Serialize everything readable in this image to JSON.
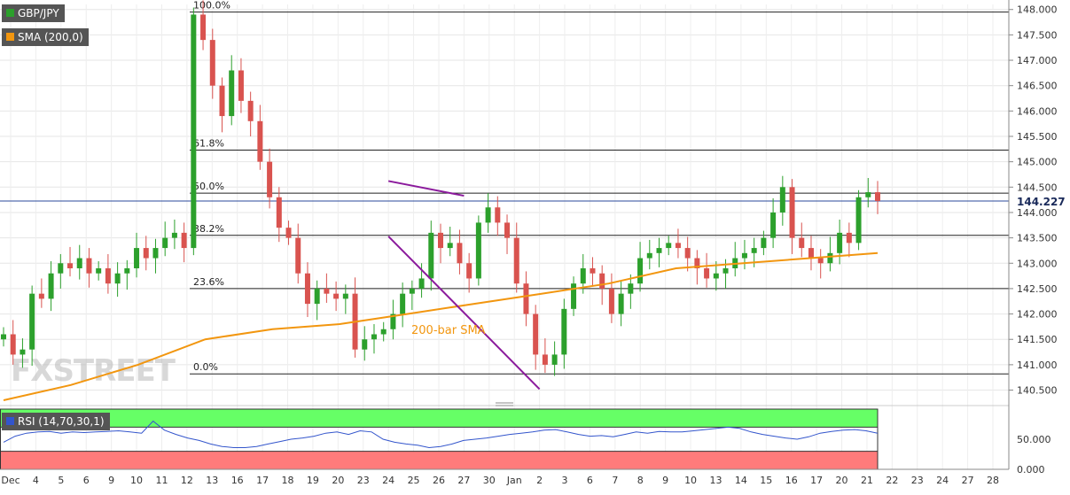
{
  "legend": {
    "symbol": "GBP/JPY",
    "sma": "SMA (200,0)",
    "rsi": "RSI (14,70,30,1)"
  },
  "annotations": {
    "sma_label": "200-bar SMA",
    "price_tag": "144.227"
  },
  "colors": {
    "up": "#2ca02c",
    "down": "#d9534f",
    "sma": "#f2960f",
    "trend": "#8b1a9c",
    "rsi_line": "#3355cc",
    "rsi_overbought": "#66ff66",
    "rsi_oversold": "#ff7b7b",
    "legend_bg": "#555555"
  },
  "watermark": "FXSTREET",
  "chart_data": {
    "type": "candlestick",
    "ylim": [
      140.3,
      148.1
    ],
    "yticks": [
      "148.000",
      "147.500",
      "147.000",
      "146.500",
      "146.000",
      "145.500",
      "145.000",
      "144.500",
      "144.000",
      "143.500",
      "143.000",
      "142.500",
      "142.000",
      "141.500",
      "141.000",
      "140.500"
    ],
    "ytick_values": [
      148.0,
      147.5,
      147.0,
      146.5,
      146.0,
      145.5,
      145.0,
      144.5,
      144.0,
      143.5,
      143.0,
      142.5,
      142.0,
      141.5,
      141.0,
      140.5
    ],
    "xticks": [
      "Dec",
      "4",
      "5",
      "6",
      "9",
      "10",
      "11",
      "12",
      "13",
      "16",
      "17",
      "18",
      "19",
      "20",
      "23",
      "24",
      "25",
      "26",
      "27",
      "30",
      "Jan",
      "2",
      "3",
      "6",
      "7",
      "8",
      "9",
      "10",
      "13",
      "14",
      "15",
      "16",
      "17",
      "20",
      "21",
      "22",
      "23",
      "24",
      "27",
      "28"
    ],
    "fibonacci": [
      {
        "label": "100.0%",
        "value": 147.95
      },
      {
        "label": "61.8%",
        "value": 145.23
      },
      {
        "label": "50.0%",
        "value": 144.38
      },
      {
        "label": "38.2%",
        "value": 143.55
      },
      {
        "label": "23.6%",
        "value": 142.5
      },
      {
        "label": "0.0%",
        "value": 140.82
      }
    ],
    "last_price": 144.227,
    "upper_trendline": {
      "from": {
        "label": "27",
        "value": 144.33
      },
      "to": {
        "label": "24",
        "value": 144.62
      }
    },
    "lower_trendline": {
      "from": {
        "label": "2",
        "value": 140.52
      },
      "to": {
        "label": "24",
        "value": 143.53
      }
    },
    "series": [
      {
        "name": "GBP/JPY",
        "values": [
          141.6,
          141.2,
          141.3,
          142.4,
          142.3,
          142.8,
          143.0,
          142.9,
          143.1,
          142.8,
          142.9,
          142.6,
          142.8,
          142.9,
          143.3,
          143.1,
          143.3,
          143.5,
          143.6,
          143.3,
          147.9,
          147.4,
          146.5,
          145.9,
          146.8,
          146.2,
          145.8,
          145.0,
          144.3,
          143.7,
          143.5,
          142.8,
          142.2,
          142.5,
          142.4,
          142.3,
          142.4,
          141.3,
          141.5,
          141.6,
          141.7,
          142.0,
          142.4,
          142.5,
          142.7,
          143.6,
          143.3,
          143.4,
          143.0,
          142.7,
          143.8,
          144.1,
          143.8,
          143.5,
          142.6,
          142.0,
          141.2,
          141.0,
          141.2,
          142.1,
          142.6,
          142.9,
          142.8,
          142.5,
          142.0,
          142.4,
          142.6,
          143.1,
          143.2,
          143.3,
          143.4,
          143.3,
          143.1,
          142.9,
          142.7,
          142.8,
          142.9,
          143.1,
          143.2,
          143.3,
          143.5,
          144.0,
          144.5,
          143.5,
          143.3,
          143.1,
          143.0,
          143.2,
          143.6,
          143.4,
          144.3,
          144.4,
          144.227
        ]
      },
      {
        "name": "SMA (200,0)",
        "values": [
          140.3,
          140.6,
          141.0,
          141.5,
          141.7,
          141.8,
          142.0,
          142.2,
          142.4,
          142.6,
          142.9,
          143.0,
          143.1,
          143.2
        ]
      },
      {
        "name": "RSI (14,70,30,1)",
        "values": [
          45,
          55,
          60,
          62,
          63,
          60,
          62,
          61,
          62,
          63,
          64,
          62,
          60,
          80,
          65,
          58,
          52,
          48,
          42,
          38,
          36,
          36,
          38,
          42,
          46,
          50,
          52,
          55,
          60,
          62,
          58,
          64,
          62,
          50,
          45,
          42,
          40,
          36,
          38,
          42,
          48,
          50,
          52,
          55,
          58,
          60,
          62,
          65,
          66,
          62,
          58,
          55,
          56,
          54,
          58,
          62,
          60,
          63,
          62,
          62,
          64,
          66,
          68,
          70,
          68,
          62,
          58,
          55,
          52,
          50,
          54,
          60,
          63,
          65,
          66,
          64,
          60
        ]
      }
    ],
    "rsi_ylim": [
      0,
      100
    ],
    "rsi_yticks": [
      "50.000",
      "0.000"
    ],
    "rsi_ytick_values": [
      50,
      0
    ],
    "rsi_levels": [
      70,
      30
    ]
  }
}
